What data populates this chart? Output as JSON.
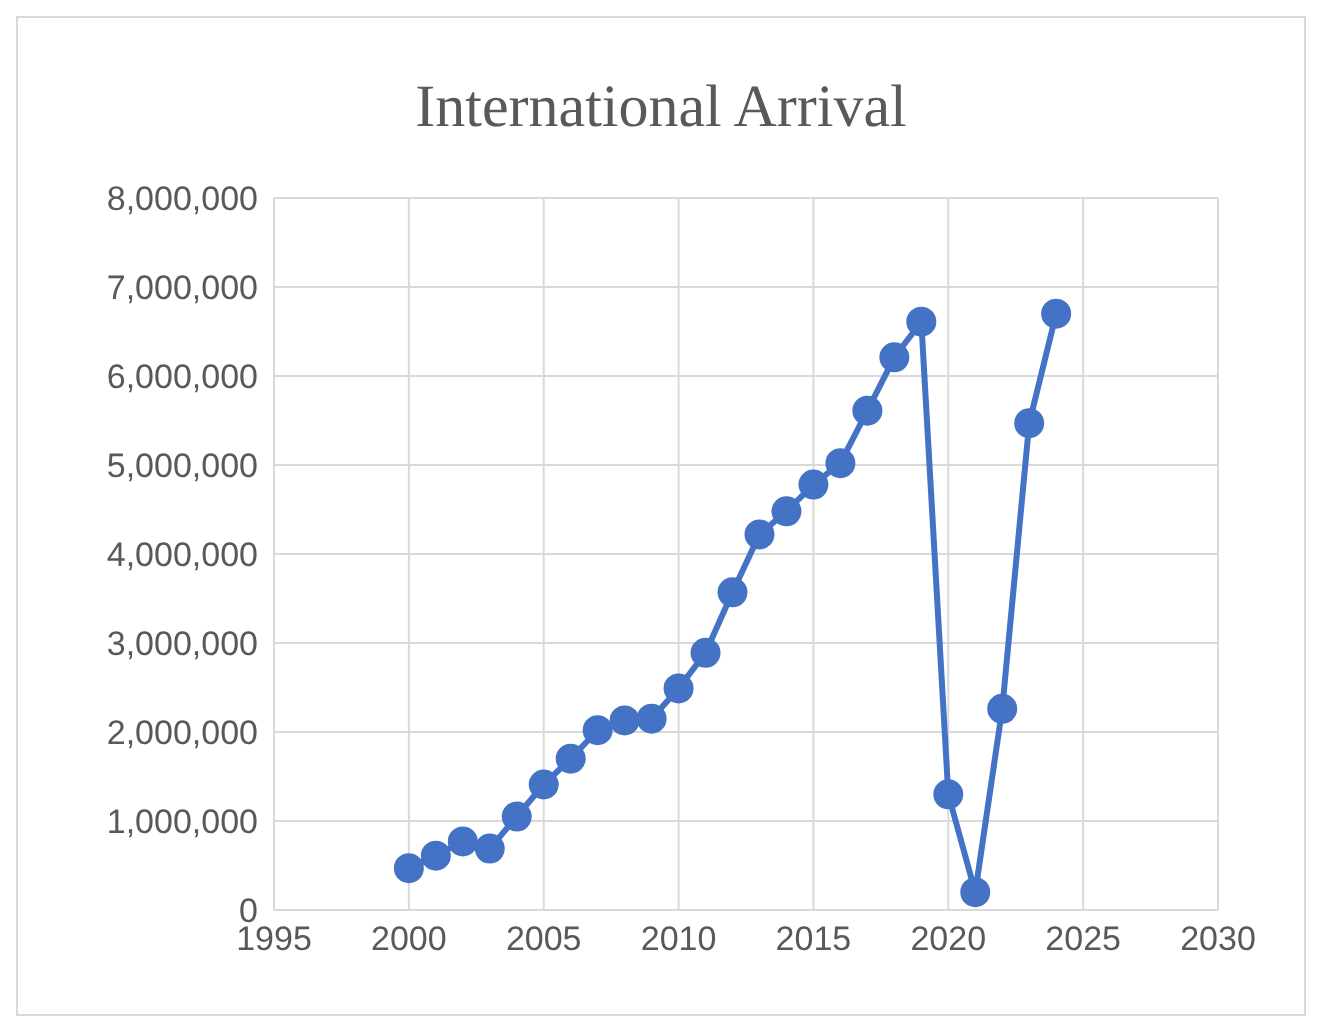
{
  "chart_data": {
    "type": "line",
    "title": "International Arrival",
    "x": [
      2000,
      2001,
      2002,
      2003,
      2004,
      2005,
      2006,
      2007,
      2008,
      2009,
      2010,
      2011,
      2012,
      2013,
      2014,
      2015,
      2016,
      2017,
      2018,
      2019,
      2020,
      2021,
      2022,
      2023,
      2024
    ],
    "series": [
      {
        "color": "#4472c4",
        "values": [
          470000,
          610000,
          770000,
          690000,
          1050000,
          1410000,
          1700000,
          2020000,
          2130000,
          2150000,
          2490000,
          2890000,
          3570000,
          4220000,
          4480000,
          4780000,
          5020000,
          5610000,
          6210000,
          6610000,
          1300000,
          200000,
          2260000,
          5470000,
          6700000
        ]
      }
    ],
    "xlim": [
      1995,
      2030
    ],
    "xticks": [
      1995,
      2000,
      2005,
      2010,
      2015,
      2020,
      2025,
      2030
    ],
    "ylim": [
      0,
      8000000
    ],
    "yticks": [
      0,
      {
        "value": 1000000,
        "label": "1,000,000"
      },
      {
        "value": 2000000,
        "label": "2,000,000"
      },
      {
        "value": 3000000,
        "label": "3,000,000"
      },
      {
        "value": 4000000,
        "label": "4,000,000"
      },
      {
        "value": 5000000,
        "label": "5,000,000"
      },
      {
        "value": 6000000,
        "label": "6,000,000"
      },
      {
        "value": 7000000,
        "label": "7,000,000"
      },
      {
        "value": 8000000,
        "label": "8,000,000"
      }
    ],
    "grid": true,
    "marker": "circle",
    "line_style": "solid"
  }
}
